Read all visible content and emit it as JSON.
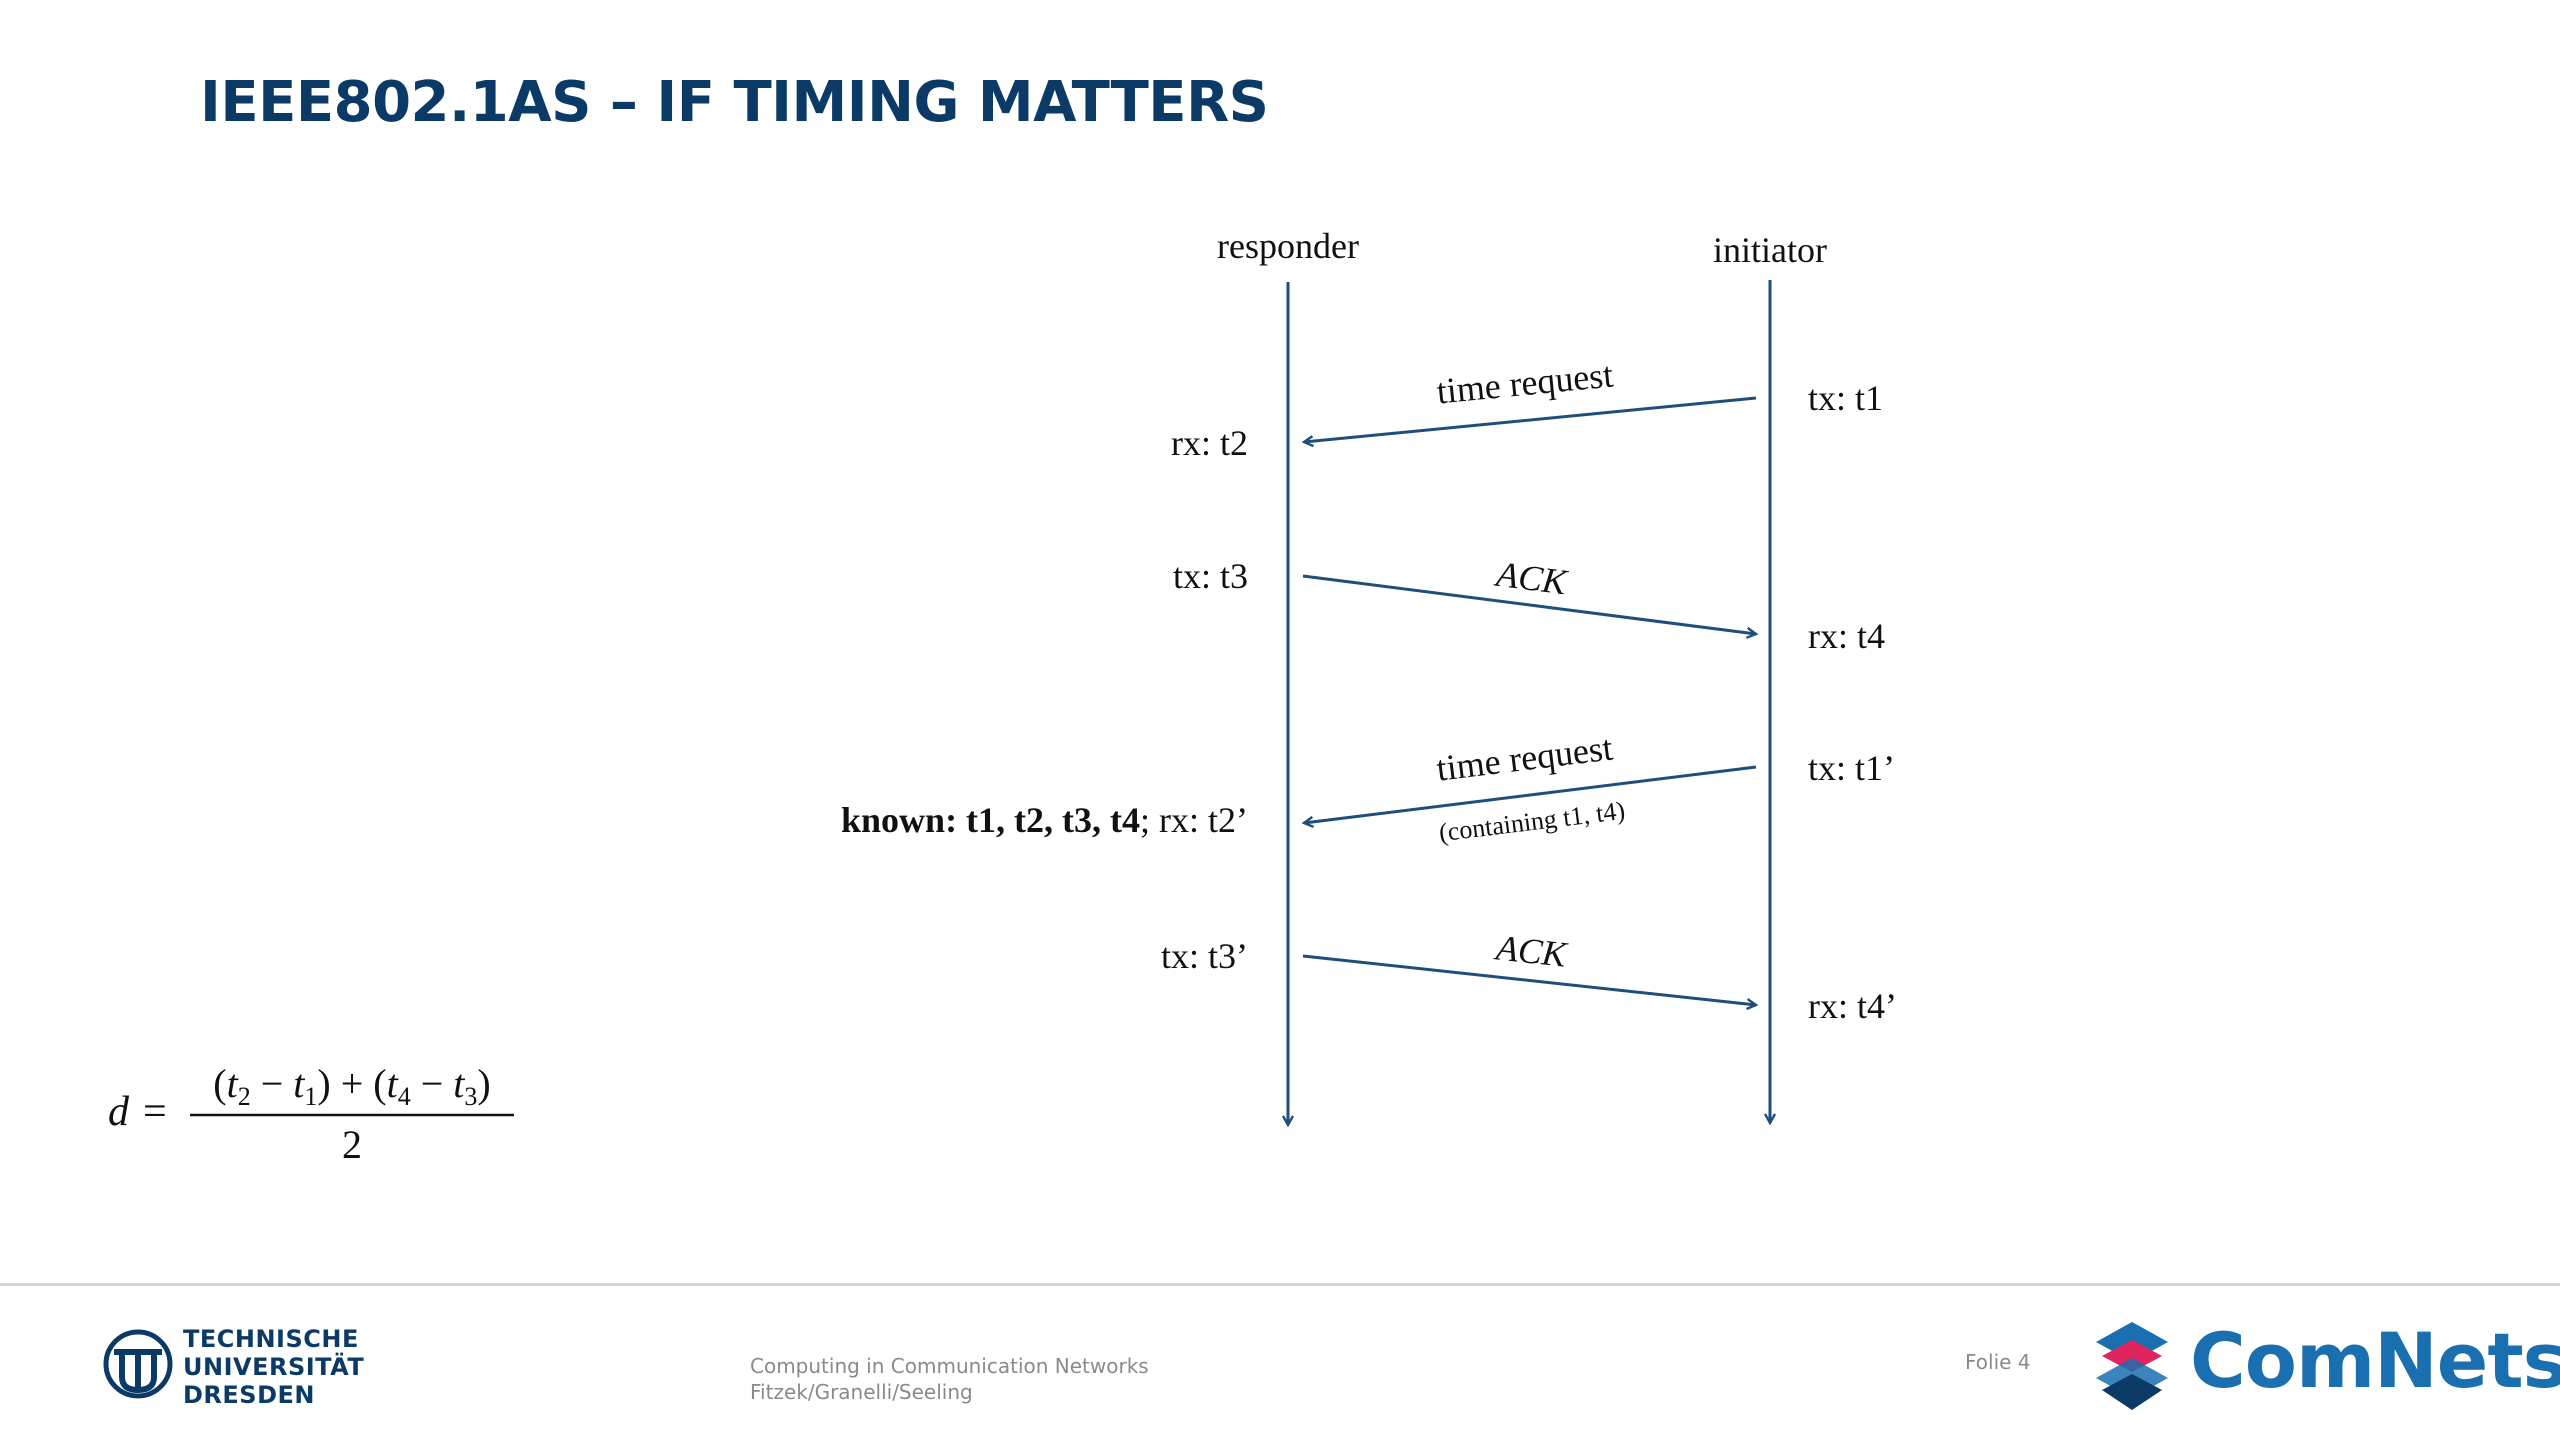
{
  "slide": {
    "title": "IEEE802.1AS – IF TIMING MATTERS"
  },
  "diagram": {
    "lanes": {
      "responder": "responder",
      "initiator": "initiator"
    },
    "messages": [
      {
        "label": "time request",
        "from": "initiator",
        "to": "responder",
        "tx": "tx: t1",
        "rx": "rx: t2"
      },
      {
        "label": "ACK",
        "from": "responder",
        "to": "initiator",
        "tx": "tx: t3",
        "rx": "rx: t4"
      },
      {
        "label": "time request",
        "sublabel": "(containing t1, t4)",
        "from": "initiator",
        "to": "responder",
        "tx": "tx: t1’",
        "rx_prefix": "known: t1, t2, t3, t4",
        "rx": "; rx: t2’"
      },
      {
        "label": "ACK",
        "from": "responder",
        "to": "initiator",
        "tx": "tx: t3’",
        "rx": "rx: t4’"
      }
    ]
  },
  "formula": {
    "lhs": "d",
    "eq": "=",
    "numerator": {
      "a": "t",
      "a_sub": "2",
      "b": "t",
      "b_sub": "1",
      "c": "t",
      "c_sub": "4",
      "d": "t",
      "d_sub": "3"
    },
    "denominator": "2"
  },
  "footer": {
    "university": [
      "TECHNISCHE",
      "UNIVERSITÄT",
      "DRESDEN"
    ],
    "course_line1": "Computing in Communication Networks",
    "course_line2": "Fitzek/Granelli/Seeling",
    "page": "Folie 4",
    "brand": "ComNets"
  },
  "colors": {
    "title": "#0b3a66",
    "arrow": "#1f4e79",
    "brand": "#1a6fb0",
    "accent": "#e0245e"
  }
}
